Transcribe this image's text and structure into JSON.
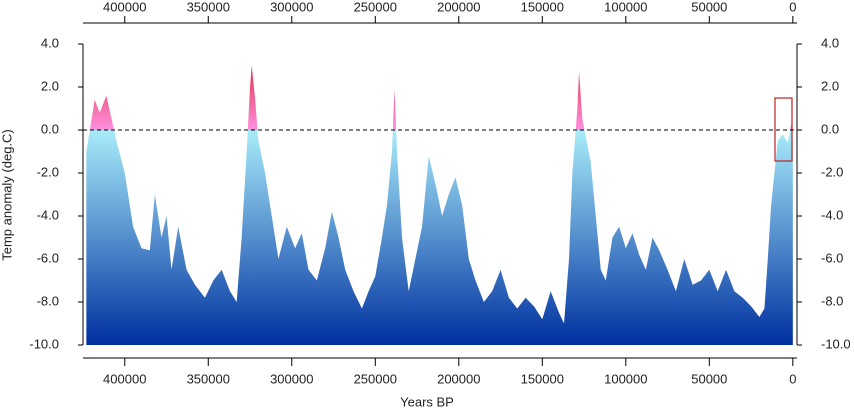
{
  "chart_data": {
    "type": "area",
    "x_label": "Years BP",
    "y_label": "Temp anomaly (deg.C)",
    "x": [
      423000,
      418000,
      415000,
      411000,
      407000,
      405000,
      400000,
      395000,
      390000,
      385000,
      382000,
      378000,
      375000,
      372000,
      368000,
      363000,
      358000,
      352000,
      347000,
      342000,
      337000,
      333000,
      330000,
      327000,
      325000,
      324000,
      322000,
      320000,
      316000,
      312000,
      308000,
      303000,
      298000,
      294000,
      290000,
      285000,
      280000,
      276000,
      272000,
      268000,
      263000,
      258000,
      254000,
      250000,
      246000,
      243000,
      240000,
      238500,
      237000,
      234000,
      230000,
      226000,
      222000,
      218000,
      214000,
      210000,
      206000,
      202000,
      198000,
      194000,
      190000,
      185000,
      180000,
      175000,
      170000,
      165000,
      160000,
      155000,
      150000,
      145000,
      140000,
      137000,
      134000,
      132000,
      129000,
      128000,
      126000,
      124000,
      121000,
      118000,
      115000,
      112000,
      108000,
      104000,
      100000,
      96000,
      92000,
      88000,
      84000,
      80000,
      75000,
      70000,
      65000,
      60000,
      55000,
      50000,
      45000,
      40000,
      35000,
      30000,
      25000,
      20000,
      17000,
      15000,
      13000,
      11000,
      9000,
      6000,
      3000,
      1000,
      0
    ],
    "series": [
      {
        "values": [
          -1,
          1.4,
          0.8,
          1.6,
          0.2,
          -0.5,
          -2,
          -4.5,
          -5.5,
          -5.6,
          -3,
          -5,
          -4,
          -6.5,
          -4.5,
          -6.5,
          -7.2,
          -7.8,
          -7,
          -6.5,
          -7.5,
          -8,
          -5,
          -1,
          2,
          3.0,
          1.5,
          -0.5,
          -2,
          -4,
          -6,
          -4.5,
          -5.5,
          -4.8,
          -6.5,
          -7,
          -5.5,
          -3.8,
          -5,
          -6.5,
          -7.5,
          -8.3,
          -7.5,
          -6.8,
          -5,
          -3.5,
          -1,
          1.9,
          -1,
          -5,
          -7.5,
          -6,
          -4.5,
          -1.2,
          -2.5,
          -4,
          -3,
          -2.2,
          -3.5,
          -6,
          -7,
          -8,
          -7.5,
          -6.5,
          -7.8,
          -8.3,
          -7.8,
          -8.2,
          -8.8,
          -7.5,
          -8.5,
          -9,
          -6,
          -2,
          1,
          2.7,
          0.5,
          -0.3,
          -1.5,
          -4,
          -6.5,
          -7,
          -5,
          -4.5,
          -5.5,
          -4.8,
          -5.8,
          -6.5,
          -5,
          -5.6,
          -6.5,
          -7.5,
          -6,
          -7.2,
          -7,
          -6.5,
          -7.5,
          -6.5,
          -7.5,
          -7.8,
          -8.2,
          -8.7,
          -8.3,
          -6,
          -3.5,
          -2,
          -0.5,
          -0.2,
          -0.6,
          0.3,
          -0.5
        ]
      }
    ],
    "xlim": [
      425000,
      -2500
    ],
    "xticks": [
      400000,
      350000,
      300000,
      250000,
      200000,
      150000,
      100000,
      50000,
      0
    ],
    "ylim": [
      -10,
      4
    ],
    "yticks": [
      {
        "value": 4,
        "label": "4.0"
      },
      {
        "value": 2,
        "label": "2.0"
      },
      {
        "value": 0,
        "label": "0.0"
      },
      {
        "value": -2,
        "label": "-2.0"
      },
      {
        "value": -4,
        "label": "-4.0"
      },
      {
        "value": -6,
        "label": "-6.0"
      },
      {
        "value": -8,
        "label": "-8.0"
      },
      {
        "value": -10,
        "label": "-10.0"
      }
    ],
    "zero_line": true
  }
}
